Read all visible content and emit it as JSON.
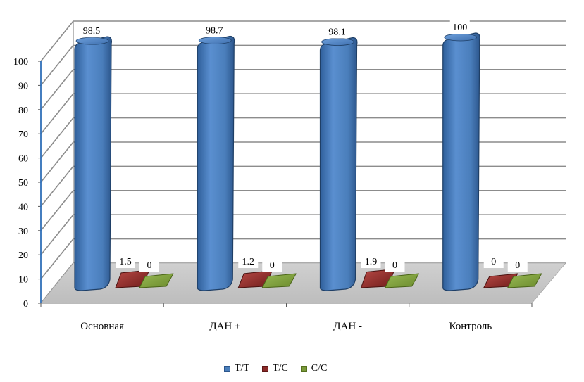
{
  "chart_data": {
    "type": "bar",
    "categories": [
      "Основная",
      "ДАН +",
      "ДАН -",
      "Контроль"
    ],
    "series": [
      {
        "name": "T/T",
        "values": [
          98.5,
          98.7,
          98.1,
          100
        ],
        "color": "#4a7ebb"
      },
      {
        "name": "T/C",
        "values": [
          1.5,
          1.2,
          1.9,
          0
        ],
        "color": "#8b2a28"
      },
      {
        "name": "C/C",
        "values": [
          0,
          0,
          0,
          0
        ],
        "color": "#7a9a3a"
      }
    ],
    "data_labels": [
      [
        "98.5",
        "1.5",
        "0"
      ],
      [
        "98.7",
        "1.2",
        "0"
      ],
      [
        "98.1",
        "1.9",
        "0"
      ],
      [
        "100",
        "0",
        "0"
      ]
    ],
    "yticks": [
      "0",
      "10",
      "20",
      "30",
      "40",
      "50",
      "60",
      "70",
      "80",
      "90",
      "100"
    ],
    "ylim": [
      0,
      100
    ],
    "grid": true,
    "legend_position": "bottom",
    "three_d": true
  }
}
